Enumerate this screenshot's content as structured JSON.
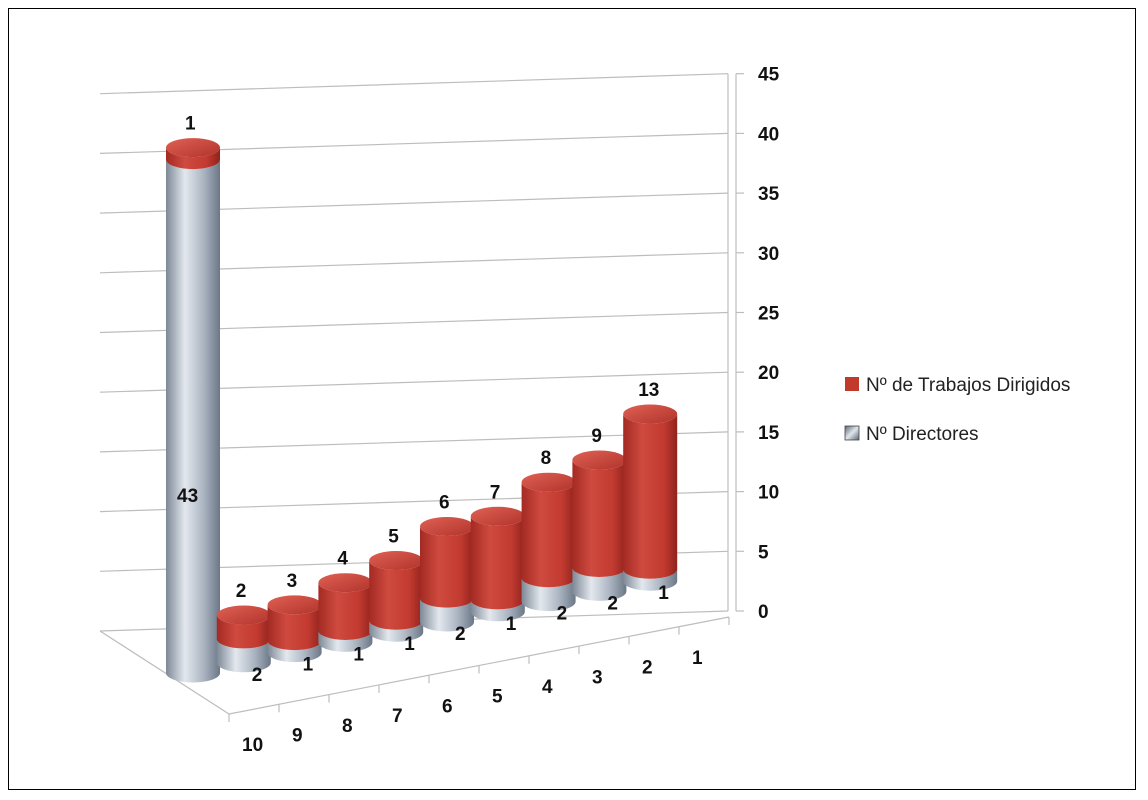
{
  "chart_data": {
    "type": "bar",
    "style": "3d-cylinder",
    "categories": [
      "10",
      "9",
      "8",
      "7",
      "6",
      "5",
      "4",
      "3",
      "2",
      "1"
    ],
    "series": [
      {
        "name": "Nº Directores",
        "values": [
          43,
          2,
          1,
          1,
          1,
          2,
          1,
          2,
          2,
          1
        ],
        "color": "#a9b4c2",
        "labels": [
          "43",
          "2",
          "1",
          "1",
          "1",
          "2",
          "1",
          "2",
          "2",
          "1"
        ]
      },
      {
        "name": "Nº de Trabajos Dirigidos",
        "values": [
          1,
          2,
          3,
          4,
          5,
          6,
          7,
          8,
          9,
          13
        ],
        "color": "#c0392b",
        "labels": [
          "1",
          "2",
          "3",
          "4",
          "5",
          "6",
          "7",
          "8",
          "9",
          "13"
        ]
      }
    ],
    "y_ticks": [
      "0",
      "5",
      "10",
      "15",
      "20",
      "25",
      "30",
      "35",
      "40",
      "45"
    ],
    "ylim": [
      0,
      45
    ],
    "grid": true,
    "legend": "right",
    "title": "",
    "xlabel": "",
    "ylabel": ""
  }
}
